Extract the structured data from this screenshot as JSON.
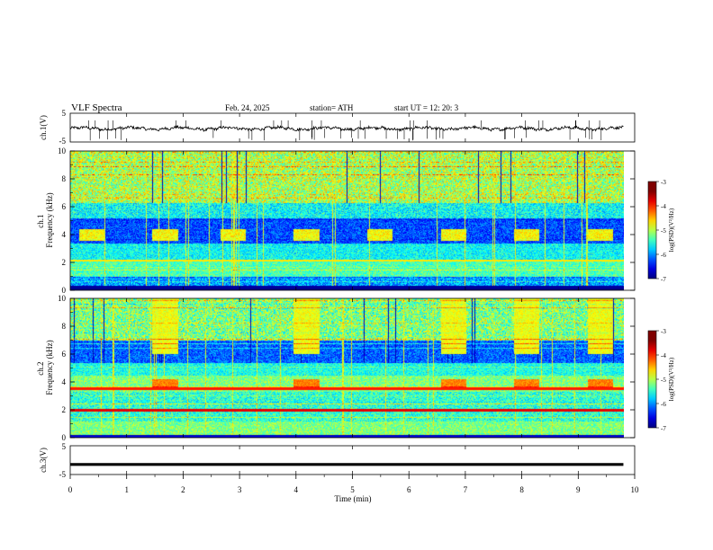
{
  "header": {
    "title": "VLF  Spectra",
    "date": "Feb. 24, 2025",
    "station": "station= ATH",
    "start_ut": "start  UT  =    12: 20: 3"
  },
  "chart_data": [
    {
      "type": "line",
      "panel": "ch1-waveform",
      "ylabel": "ch.1(V)",
      "ylim": [
        -5,
        5
      ],
      "yticks": [
        "5",
        "-5"
      ],
      "xlim": [
        0,
        10
      ],
      "x_end": 9.8,
      "baseline": -0.3
    },
    {
      "type": "heatmap",
      "panel": "ch1-spectrogram",
      "ylabel": "ch.1\nFrequency (kHz)",
      "ylim": [
        0,
        10
      ],
      "yticks": [
        "0",
        "2",
        "4",
        "6",
        "8",
        "10"
      ],
      "xlim": [
        0,
        10
      ],
      "x_end": 9.8,
      "burst_times_min": [
        0.15,
        1.45,
        2.65,
        3.95,
        5.25,
        6.55,
        7.85,
        9.15
      ],
      "burst_band_khz": [
        3.6,
        4.4
      ],
      "colorbar": {
        "label": "log(PSD)(V²/Hz)",
        "ticks": [
          "-3",
          "-4",
          "-5",
          "-6",
          "-7"
        ],
        "range": [
          -7,
          -3
        ]
      }
    },
    {
      "type": "heatmap",
      "panel": "ch2-spectrogram",
      "ylabel": "ch.2\nFrequency (kHz)",
      "ylim": [
        0,
        10
      ],
      "yticks": [
        "0",
        "2",
        "4",
        "6",
        "8",
        "10"
      ],
      "xlim": [
        0,
        10
      ],
      "x_end": 9.8,
      "burst_times_min": [
        1.45,
        3.95,
        6.55,
        7.85,
        9.15
      ],
      "burst_band_khz": [
        3.5,
        4.2
      ],
      "colorbar": {
        "label": "log(PSD)(V²/Hz)",
        "ticks": [
          "-3",
          "-4",
          "-5",
          "-6",
          "-7"
        ],
        "range": [
          -7,
          -3
        ]
      }
    },
    {
      "type": "line",
      "panel": "ch3-waveform",
      "ylabel": "ch.3(V)",
      "ylim": [
        -5,
        5
      ],
      "yticks": [
        "5",
        "-5"
      ],
      "xlim": [
        0,
        10
      ],
      "x_end": 9.8,
      "baseline": -1.5,
      "xlabel": "Time  (min)",
      "xticks": [
        "0",
        "1",
        "2",
        "3",
        "4",
        "5",
        "6",
        "7",
        "8",
        "9",
        "10"
      ]
    }
  ]
}
